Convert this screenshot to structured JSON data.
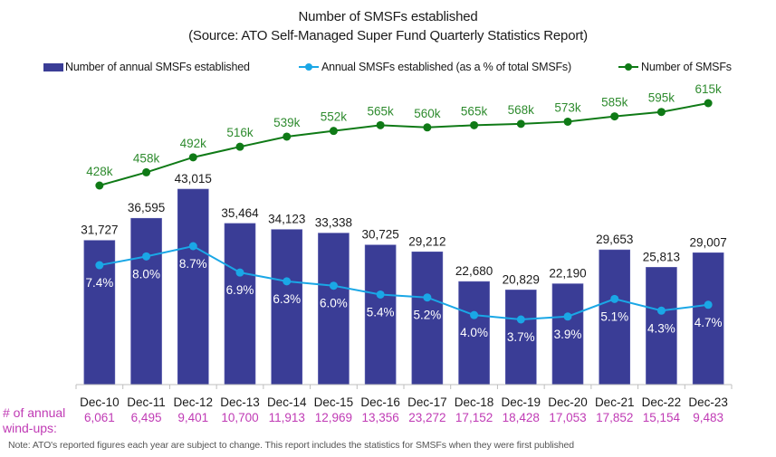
{
  "title_line1": "Number of SMSFs established",
  "title_line2": "(Source: ATO Self-Managed Super Fund Quarterly Statistics Report)",
  "legend": [
    {
      "label": "Number of annual SMSFs established",
      "color": "#3a3d96",
      "kind": "bar"
    },
    {
      "label": "Annual SMSFs established (as a % of total SMSFs)",
      "color": "#1aa7e6",
      "kind": "line"
    },
    {
      "label": "Number of SMSFs",
      "color": "#0f7a16",
      "kind": "line"
    }
  ],
  "windups_label_line1": "# of annual",
  "windups_label_line2": "wind-ups:",
  "note": "Note: ATO's reported figures each year are subject to change. This report includes the statistics for SMSFs when they were first published",
  "colors": {
    "bar": "#3a3d96",
    "pct_line": "#1aa7e6",
    "total_line": "#0f7a16",
    "total_label": "#2e8b2e",
    "windups": "#c03bb5",
    "axis": "#bfbfbf",
    "text": "#1a1a1a"
  },
  "chart_data": {
    "type": "bar",
    "title": "Number of SMSFs established (Source: ATO Self-Managed Super Fund Quarterly Statistics Report)",
    "xlabel": "",
    "ylabel": "",
    "grid": false,
    "legend_position": "top",
    "categories": [
      "Dec-10",
      "Dec-11",
      "Dec-12",
      "Dec-13",
      "Dec-14",
      "Dec-15",
      "Dec-16",
      "Dec-17",
      "Dec-18",
      "Dec-19",
      "Dec-20",
      "Dec-21",
      "Dec-22",
      "Dec-23"
    ],
    "series": [
      {
        "name": "Number of annual SMSFs established",
        "type": "bar",
        "values": [
          31727,
          36595,
          43015,
          35464,
          34123,
          33338,
          30725,
          29212,
          22680,
          20829,
          22190,
          29653,
          25813,
          29007
        ],
        "labels": [
          "31,727",
          "36,595",
          "43,015",
          "35,464",
          "34,123",
          "33,338",
          "30,725",
          "29,212",
          "22,680",
          "20,829",
          "22,190",
          "29,653",
          "25,813",
          "29,007"
        ]
      },
      {
        "name": "Annual SMSFs established (as a % of total SMSFs)",
        "type": "line",
        "values": [
          7.4,
          8.0,
          8.7,
          6.9,
          6.3,
          6.0,
          5.4,
          5.2,
          4.0,
          3.7,
          3.9,
          5.1,
          4.3,
          4.7
        ],
        "labels": [
          "7.4%",
          "8.0%",
          "8.7%",
          "6.9%",
          "6.3%",
          "6.0%",
          "5.4%",
          "5.2%",
          "4.0%",
          "3.7%",
          "3.9%",
          "5.1%",
          "4.3%",
          "4.7%"
        ]
      },
      {
        "name": "Number of SMSFs",
        "type": "line",
        "values": [
          428000,
          458000,
          492000,
          516000,
          539000,
          552000,
          565000,
          560000,
          565000,
          568000,
          573000,
          585000,
          595000,
          615000
        ],
        "labels": [
          "428k",
          "458k",
          "492k",
          "516k",
          "539k",
          "552k",
          "565k",
          "560k",
          "565k",
          "568k",
          "573k",
          "585k",
          "595k",
          "615k"
        ]
      }
    ],
    "windups": {
      "name": "# of annual wind-ups",
      "values": [
        6061,
        6495,
        9401,
        10700,
        11913,
        12969,
        13356,
        23272,
        17152,
        18428,
        17053,
        17852,
        15154,
        9483
      ],
      "labels": [
        "6,061",
        "6,495",
        "9,401",
        "10,700",
        "11,913",
        "12,969",
        "13,356",
        "23,272",
        "17,152",
        "18,428",
        "17,053",
        "17,852",
        "15,154",
        "9,483"
      ]
    },
    "ylim_bars": [
      0,
      46000
    ],
    "ylim_pct": [
      0,
      10
    ],
    "ylim_total": [
      250000,
      640000
    ]
  }
}
